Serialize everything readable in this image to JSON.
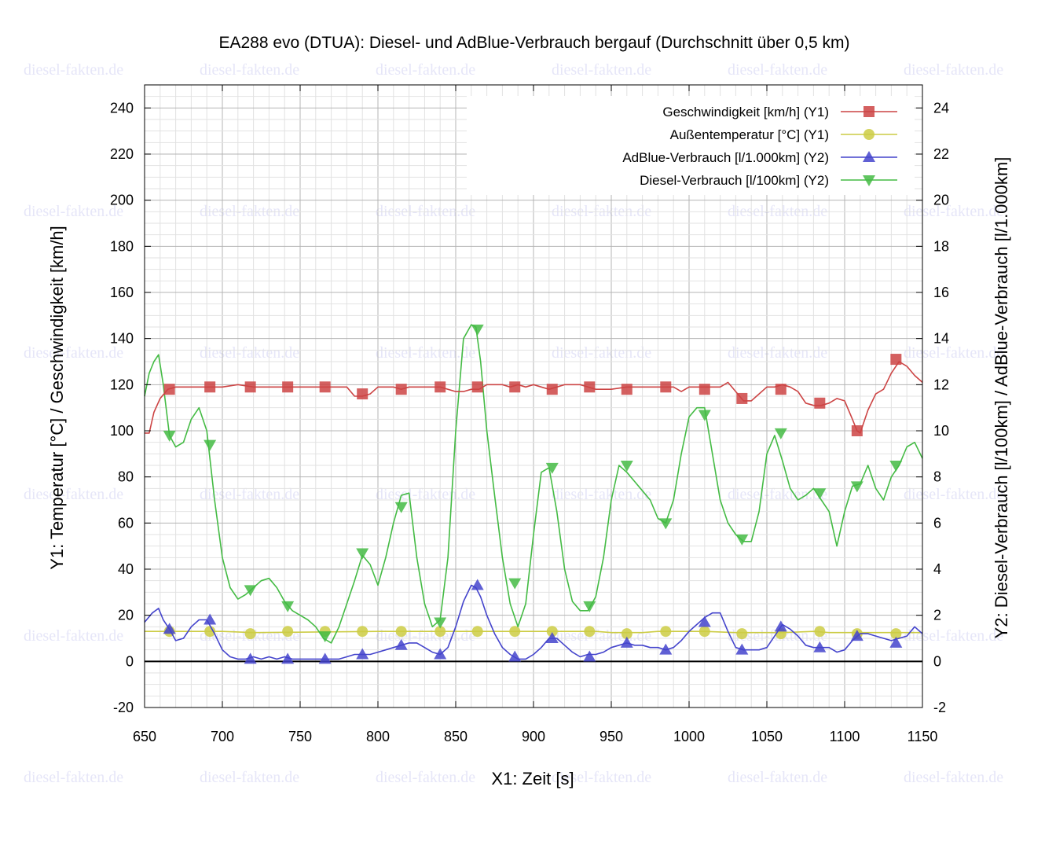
{
  "chart_data": {
    "type": "line",
    "title": "EA288 evo (DTUA): Diesel- und AdBlue-Verbrauch bergauf (Durchschnitt über 0,5 km)",
    "xlabel": "X1: Zeit [s]",
    "ylabel": "Y1: Temperatur [°C] / Geschwindigkeit [km/h]",
    "y2label": "Y2: Diesel-Verbrauch [l/100km] / AdBlue-Verbrauch [l/1.000km]",
    "xlim": [
      650,
      1150
    ],
    "ylim": [
      -20,
      250
    ],
    "y2lim": [
      -2,
      25
    ],
    "xticks": [
      650,
      700,
      750,
      800,
      850,
      900,
      950,
      1000,
      1050,
      1100,
      1150
    ],
    "yticks": [
      -20,
      0,
      20,
      40,
      60,
      80,
      100,
      120,
      140,
      160,
      180,
      200,
      220,
      240
    ],
    "y2ticks": [
      -2,
      0,
      2,
      4,
      6,
      8,
      10,
      12,
      14,
      16,
      18,
      20,
      22,
      24
    ],
    "grid": true,
    "legend_position": "top-right",
    "watermark": "diesel-fakten.de",
    "series": [
      {
        "name": "Geschwindigkeit [km/h] (Y1)",
        "axis": "y1",
        "color": "#cc4444",
        "marker": "square",
        "x": [
          650,
          653,
          656,
          660,
          665,
          670,
          680,
          690,
          700,
          710,
          720,
          730,
          740,
          750,
          760,
          770,
          775,
          780,
          785,
          790,
          795,
          800,
          810,
          815,
          820,
          830,
          840,
          850,
          855,
          860,
          865,
          870,
          880,
          885,
          890,
          895,
          900,
          905,
          910,
          915,
          920,
          930,
          940,
          950,
          960,
          970,
          980,
          990,
          995,
          1000,
          1010,
          1020,
          1025,
          1030,
          1035,
          1040,
          1045,
          1050,
          1055,
          1060,
          1065,
          1070,
          1075,
          1080,
          1085,
          1090,
          1095,
          1100,
          1105,
          1108,
          1110,
          1115,
          1120,
          1125,
          1130,
          1135,
          1140,
          1145,
          1150
        ],
        "values": [
          99,
          99,
          108,
          114,
          118,
          119,
          119,
          119,
          119,
          120,
          119,
          119,
          119,
          119,
          119,
          119,
          119,
          119,
          115,
          115,
          116,
          119,
          119,
          118,
          119,
          119,
          119,
          117,
          117,
          118,
          118,
          120,
          120,
          119,
          120,
          119,
          120,
          119,
          118,
          119,
          120,
          120,
          118,
          118,
          119,
          119,
          119,
          119,
          117,
          119,
          119,
          119,
          121,
          117,
          113,
          113,
          116,
          119,
          119,
          120,
          119,
          117,
          112,
          111,
          111,
          112,
          114,
          113,
          105,
          100,
          99,
          109,
          116,
          118,
          125,
          130,
          128,
          124,
          121
        ],
        "marker_x": [
          666,
          692,
          718,
          742,
          766,
          790,
          815,
          840,
          864,
          888,
          912,
          936,
          960,
          985,
          1010,
          1034,
          1059,
          1084,
          1108,
          1133
        ],
        "marker_values": [
          118,
          119,
          119,
          119,
          119,
          116,
          118,
          119,
          119,
          119,
          118,
          119,
          118,
          119,
          118,
          114,
          118,
          112,
          100,
          131
        ]
      },
      {
        "name": "Außentemperatur [°C] (Y1)",
        "axis": "y1",
        "color": "#cccc44",
        "marker": "circle",
        "x": [
          650,
          700,
          720,
          800,
          820,
          900,
          920,
          940,
          950,
          970,
          980,
          1000,
          1010,
          1030,
          1050,
          1060,
          1080,
          1090,
          1110,
          1150
        ],
        "values": [
          13,
          13,
          12.5,
          13,
          13,
          13,
          13,
          13,
          12.5,
          12.5,
          13,
          13,
          13,
          12.5,
          12.5,
          12.5,
          13,
          12.5,
          12.5,
          12.5
        ],
        "marker_x": [
          666,
          692,
          718,
          742,
          766,
          790,
          815,
          840,
          864,
          888,
          912,
          936,
          960,
          985,
          1010,
          1034,
          1059,
          1084,
          1108,
          1133
        ],
        "marker_values": [
          13,
          13,
          12,
          13,
          13,
          13,
          13,
          13,
          13,
          13,
          13,
          13,
          12,
          13,
          13,
          12,
          12,
          13,
          12,
          12
        ]
      },
      {
        "name": "AdBlue-Verbrauch [l/1.000km] (Y2)",
        "axis": "y2",
        "color": "#4444cc",
        "marker": "triangle-up",
        "x": [
          650,
          655,
          659,
          662,
          666,
          670,
          675,
          680,
          685,
          690,
          695,
          700,
          705,
          710,
          715,
          720,
          725,
          730,
          735,
          740,
          745,
          750,
          755,
          760,
          765,
          770,
          775,
          780,
          785,
          790,
          795,
          800,
          805,
          810,
          815,
          820,
          825,
          830,
          835,
          840,
          845,
          850,
          855,
          860,
          863,
          866,
          870,
          875,
          880,
          885,
          890,
          895,
          900,
          905,
          910,
          915,
          920,
          925,
          930,
          935,
          940,
          945,
          950,
          955,
          960,
          965,
          970,
          975,
          980,
          985,
          990,
          995,
          1000,
          1005,
          1010,
          1015,
          1020,
          1025,
          1030,
          1035,
          1040,
          1045,
          1050,
          1055,
          1060,
          1065,
          1070,
          1075,
          1080,
          1085,
          1090,
          1095,
          1100,
          1105,
          1110,
          1115,
          1120,
          1125,
          1130,
          1135,
          1140,
          1145,
          1150
        ],
        "values": [
          1.7,
          2.1,
          2.3,
          1.8,
          1.4,
          0.9,
          1,
          1.5,
          1.8,
          1.8,
          1.2,
          0.5,
          0.2,
          0.1,
          0.1,
          0.2,
          0.1,
          0.2,
          0.1,
          0.2,
          0.1,
          0.1,
          0.1,
          0.1,
          0.1,
          0.1,
          0.1,
          0.2,
          0.3,
          0.3,
          0.3,
          0.4,
          0.5,
          0.6,
          0.7,
          0.8,
          0.8,
          0.6,
          0.4,
          0.3,
          0.6,
          1.5,
          2.6,
          3.3,
          3.2,
          2.8,
          2,
          1.2,
          0.6,
          0.3,
          0.1,
          0.1,
          0.3,
          0.6,
          1,
          1,
          0.7,
          0.4,
          0.2,
          0.3,
          0.3,
          0.4,
          0.6,
          0.7,
          0.8,
          0.7,
          0.7,
          0.6,
          0.6,
          0.5,
          0.6,
          0.9,
          1.3,
          1.6,
          1.9,
          2.1,
          2.1,
          1.3,
          0.6,
          0.5,
          0.5,
          0.5,
          0.6,
          1.1,
          1.6,
          1.4,
          1.1,
          0.7,
          0.6,
          0.6,
          0.6,
          0.4,
          0.5,
          0.9,
          1.2,
          1.2,
          1.1,
          1,
          0.9,
          1,
          1.1,
          1.5,
          1.2
        ],
        "marker_x": [
          666,
          692,
          718,
          742,
          766,
          790,
          815,
          840,
          864,
          888,
          912,
          936,
          960,
          985,
          1010,
          1034,
          1059,
          1084,
          1108,
          1133
        ],
        "marker_values": [
          1.4,
          1.8,
          0.1,
          0.1,
          0.1,
          0.3,
          0.7,
          0.3,
          3.3,
          0.2,
          1,
          0.2,
          0.8,
          0.5,
          1.7,
          0.5,
          1.5,
          0.6,
          1.1,
          0.8
        ]
      },
      {
        "name": "Diesel-Verbrauch [l/100km] (Y2)",
        "axis": "y2",
        "color": "#44bb44",
        "marker": "triangle-down",
        "x": [
          650,
          653,
          656,
          659,
          662,
          666,
          670,
          675,
          680,
          685,
          690,
          695,
          700,
          705,
          710,
          715,
          720,
          725,
          730,
          735,
          740,
          745,
          750,
          755,
          760,
          765,
          770,
          775,
          780,
          785,
          790,
          795,
          800,
          805,
          810,
          815,
          820,
          825,
          830,
          835,
          840,
          845,
          850,
          855,
          860,
          863,
          866,
          870,
          875,
          880,
          885,
          890,
          895,
          900,
          905,
          910,
          915,
          920,
          925,
          930,
          935,
          940,
          945,
          950,
          955,
          960,
          965,
          970,
          975,
          980,
          985,
          990,
          995,
          1000,
          1005,
          1010,
          1015,
          1020,
          1025,
          1030,
          1035,
          1040,
          1045,
          1050,
          1055,
          1060,
          1065,
          1070,
          1075,
          1080,
          1085,
          1090,
          1095,
          1100,
          1105,
          1110,
          1115,
          1120,
          1125,
          1130,
          1135,
          1140,
          1145,
          1150
        ],
        "values": [
          11.5,
          12.5,
          13,
          13.3,
          12,
          9.8,
          9.3,
          9.5,
          10.5,
          11,
          10,
          7,
          4.5,
          3.2,
          2.7,
          2.9,
          3.2,
          3.5,
          3.6,
          3.2,
          2.6,
          2.2,
          2,
          1.8,
          1.5,
          1,
          0.8,
          1.5,
          2.5,
          3.5,
          4.6,
          4.2,
          3.3,
          4.5,
          6,
          7.2,
          7.3,
          4.5,
          2.5,
          1.5,
          1.8,
          4.5,
          10,
          14,
          14.6,
          14.5,
          13,
          10,
          7.2,
          4.5,
          2.5,
          1.5,
          2.5,
          5.5,
          8.2,
          8.4,
          6.5,
          4,
          2.6,
          2.2,
          2.2,
          2.8,
          4.5,
          7,
          8.5,
          8.2,
          7.8,
          7.4,
          7,
          6.2,
          6,
          7,
          9,
          10.6,
          11,
          11,
          9,
          7,
          6,
          5.5,
          5.2,
          5.2,
          6.5,
          9,
          9.8,
          8.7,
          7.5,
          7,
          7.2,
          7.5,
          7,
          6.5,
          5,
          6.5,
          7.6,
          7.7,
          8.5,
          7.5,
          7,
          8,
          8.5,
          9.3,
          9.5,
          8.8
        ],
        "marker_x": [
          666,
          692,
          718,
          742,
          766,
          790,
          815,
          840,
          864,
          888,
          912,
          936,
          960,
          985,
          1010,
          1034,
          1059,
          1084,
          1108,
          1133
        ],
        "marker_values": [
          9.8,
          9.4,
          3.1,
          2.4,
          1.1,
          4.7,
          6.7,
          1.7,
          14.4,
          3.4,
          8.4,
          2.4,
          8.5,
          6,
          10.7,
          5.3,
          9.9,
          7.3,
          7.6,
          8.5
        ]
      }
    ]
  }
}
